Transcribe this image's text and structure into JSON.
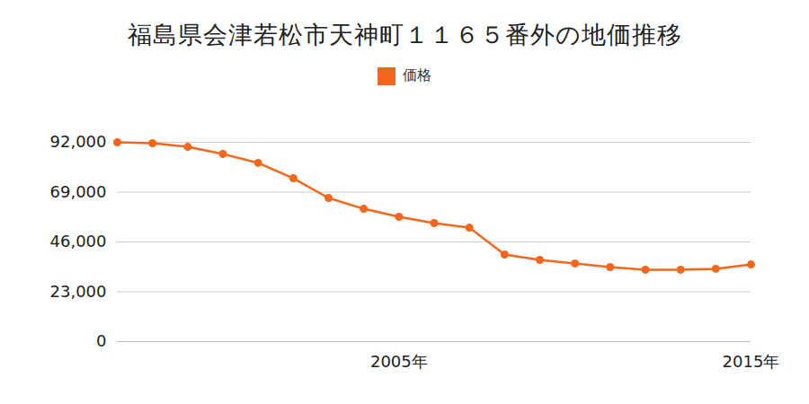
{
  "chart_data": {
    "type": "line",
    "title": "福島県会津若松市天神町１１６５番外の地価推移",
    "x": [
      1997,
      1998,
      1999,
      2000,
      2001,
      2002,
      2003,
      2004,
      2005,
      2006,
      2007,
      2008,
      2009,
      2010,
      2011,
      2012,
      2013,
      2014,
      2015
    ],
    "series": [
      {
        "name": "価格",
        "color": "#f4661b",
        "marker": "circle",
        "values": [
          92000,
          91600,
          89900,
          86600,
          82500,
          75400,
          66300,
          61300,
          57600,
          54700,
          52600,
          40200,
          37700,
          36100,
          34400,
          33200,
          33200,
          33600,
          35600
        ]
      }
    ],
    "xlim": [
      1997,
      2015
    ],
    "xticks": [
      {
        "value": 2005,
        "label": "2005年"
      },
      {
        "value": 2015,
        "label": "2015年"
      }
    ],
    "ylim": [
      0,
      92000
    ],
    "yticks": [
      0,
      {
        "value": 23000,
        "label": "23,000"
      },
      {
        "value": 46000,
        "label": "46,000"
      },
      {
        "value": 69000,
        "label": "69,000"
      },
      {
        "value": 92000,
        "label": "92,000"
      }
    ],
    "grid": true,
    "legend": "top"
  }
}
